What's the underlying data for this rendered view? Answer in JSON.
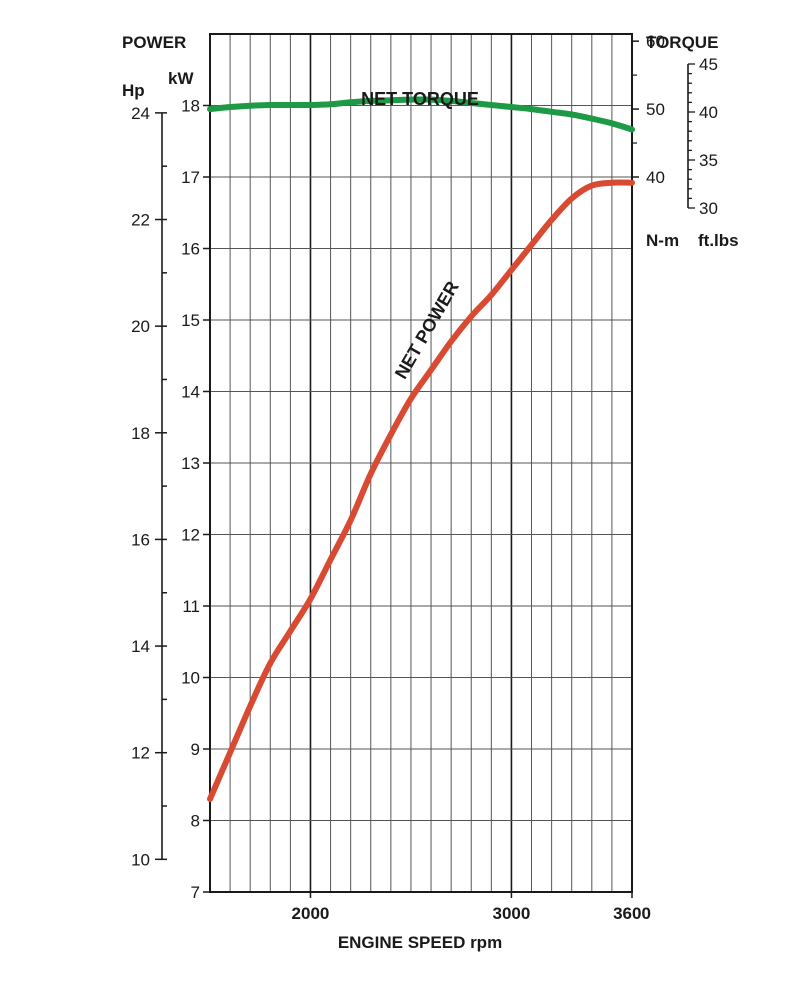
{
  "chart_data": {
    "type": "line",
    "title": "",
    "xlabel": "ENGINE SPEED rpm",
    "xlim": [
      1500,
      3600
    ],
    "x_ticks": [
      2000,
      3000,
      3600
    ],
    "grid": true,
    "axes": {
      "power_header": "POWER",
      "hp_unit": "Hp",
      "kw_unit": "kW",
      "torque_header": "TORQUE",
      "nm_unit": "N-m",
      "ftlbs_unit": "ft.lbs",
      "kw_range": [
        7,
        19
      ],
      "kw_ticks": [
        7,
        8,
        9,
        10,
        11,
        12,
        13,
        14,
        15,
        16,
        17,
        18
      ],
      "hp_ticks": [
        10,
        12,
        14,
        16,
        18,
        20,
        22,
        24
      ],
      "nm_range": [
        40,
        60
      ],
      "nm_ticks": [
        40,
        50,
        60
      ],
      "ftlbs_range": [
        30,
        45
      ],
      "ftlbs_ticks": [
        30,
        35,
        40,
        45
      ]
    },
    "series": [
      {
        "name": "NET TORQUE",
        "unit": "N-m",
        "color": "#1e9a46",
        "x": [
          1500,
          1600,
          1700,
          1800,
          1900,
          2000,
          2100,
          2200,
          2300,
          2400,
          2500,
          2600,
          2700,
          2800,
          2900,
          3000,
          3100,
          3200,
          3300,
          3400,
          3500,
          3600
        ],
        "y": [
          50.0,
          50.3,
          50.5,
          50.6,
          50.6,
          50.6,
          50.7,
          51.0,
          51.2,
          51.3,
          51.4,
          51.4,
          51.2,
          50.9,
          50.6,
          50.3,
          50.0,
          49.6,
          49.2,
          48.6,
          47.9,
          47.0
        ]
      },
      {
        "name": "NET POWER",
        "unit": "kW",
        "color": "#d94a32",
        "x": [
          1500,
          1600,
          1700,
          1800,
          1900,
          2000,
          2100,
          2200,
          2300,
          2400,
          2500,
          2600,
          2700,
          2800,
          2900,
          3000,
          3100,
          3200,
          3300,
          3400,
          3500,
          3600
        ],
        "y": [
          8.3,
          8.95,
          9.6,
          10.2,
          10.65,
          11.1,
          11.65,
          12.2,
          12.85,
          13.4,
          13.9,
          14.3,
          14.7,
          15.05,
          15.35,
          15.7,
          16.05,
          16.4,
          16.7,
          16.88,
          16.92,
          16.92
        ]
      }
    ]
  }
}
